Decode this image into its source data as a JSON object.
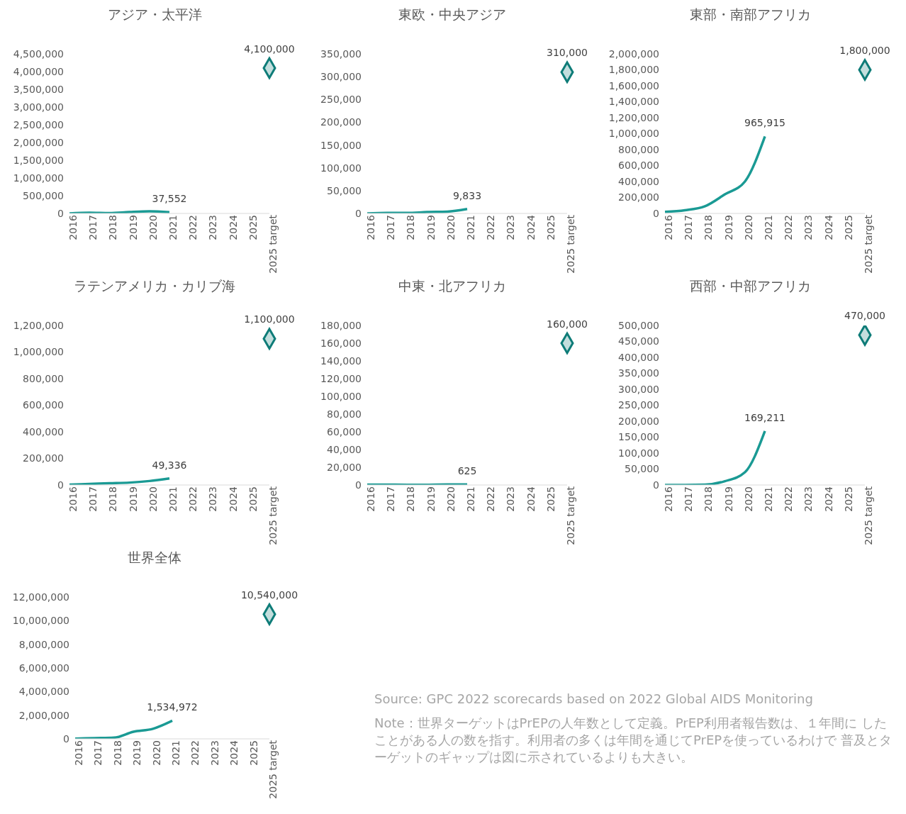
{
  "chart_data": [
    {
      "type": "line",
      "title": "アジア・太平洋",
      "categories": [
        "2016",
        "2017",
        "2018",
        "2019",
        "2020",
        "2021",
        "2022",
        "2023",
        "2024",
        "2025",
        "2025 target"
      ],
      "ylim": [
        0,
        4500000
      ],
      "yticks": [
        {
          "value": 0,
          "label": "0"
        },
        {
          "value": 500000,
          "label": "500,000"
        },
        {
          "value": 1000000,
          "label": "1,000,000"
        },
        {
          "value": 1500000,
          "label": "1,500,000"
        },
        {
          "value": 2000000,
          "label": "2,000,000"
        },
        {
          "value": 2500000,
          "label": "2,500,000"
        },
        {
          "value": 3000000,
          "label": "3,000,000"
        },
        {
          "value": 3500000,
          "label": "3,500,000"
        },
        {
          "value": 4000000,
          "label": "4,000,000"
        },
        {
          "value": 4500000,
          "label": "4,500,000"
        }
      ],
      "series": [
        {
          "type": "line",
          "color": "#1a9a94",
          "marker": "none",
          "values": [
            0,
            20000,
            10000,
            40000,
            60000,
            37552,
            null,
            null,
            null,
            null,
            null
          ],
          "value_labels": [
            null,
            null,
            null,
            null,
            null,
            "37,552",
            null,
            null,
            null,
            null,
            null
          ]
        },
        {
          "type": "scatter",
          "color": "#0e7c78",
          "marker": "diamond",
          "values": [
            null,
            null,
            null,
            null,
            null,
            null,
            null,
            null,
            null,
            null,
            4100000
          ],
          "value_labels": [
            null,
            null,
            null,
            null,
            null,
            null,
            null,
            null,
            null,
            null,
            "4,100,000"
          ]
        }
      ]
    },
    {
      "type": "line",
      "title": "東欧・中央アジア",
      "categories": [
        "2016",
        "2017",
        "2018",
        "2019",
        "2020",
        "2021",
        "2022",
        "2023",
        "2024",
        "2025",
        "2025 target"
      ],
      "ylim": [
        0,
        350000
      ],
      "yticks": [
        {
          "value": 0,
          "label": "0"
        },
        {
          "value": 50000,
          "label": "50,000"
        },
        {
          "value": 100000,
          "label": "100,000"
        },
        {
          "value": 150000,
          "label": "150,000"
        },
        {
          "value": 200000,
          "label": "200,000"
        },
        {
          "value": 250000,
          "label": "250,000"
        },
        {
          "value": 300000,
          "label": "300,000"
        },
        {
          "value": 350000,
          "label": "350,000"
        }
      ],
      "series": [
        {
          "type": "line",
          "color": "#1a9a94",
          "marker": "none",
          "values": [
            0,
            1000,
            1000,
            3000,
            4000,
            9833,
            null,
            null,
            null,
            null,
            null
          ],
          "value_labels": [
            null,
            null,
            null,
            null,
            null,
            "9,833",
            null,
            null,
            null,
            null,
            null
          ]
        },
        {
          "type": "scatter",
          "color": "#0e7c78",
          "marker": "diamond",
          "values": [
            null,
            null,
            null,
            null,
            null,
            null,
            null,
            null,
            null,
            null,
            310000
          ],
          "value_labels": [
            null,
            null,
            null,
            null,
            null,
            null,
            null,
            null,
            null,
            null,
            "310,000"
          ]
        }
      ]
    },
    {
      "type": "line",
      "title": "東部・南部アフリカ",
      "categories": [
        "2016",
        "2017",
        "2018",
        "2019",
        "2020",
        "2021",
        "2022",
        "2023",
        "2024",
        "2025",
        "2025 target"
      ],
      "ylim": [
        0,
        2000000
      ],
      "yticks": [
        {
          "value": 0,
          "label": "0"
        },
        {
          "value": 200000,
          "label": "200,000"
        },
        {
          "value": 400000,
          "label": "400,000"
        },
        {
          "value": 600000,
          "label": "600,000"
        },
        {
          "value": 800000,
          "label": "800,000"
        },
        {
          "value": 1000000,
          "label": "1,000,000"
        },
        {
          "value": 1200000,
          "label": "1,200,000"
        },
        {
          "value": 1400000,
          "label": "1,400,000"
        },
        {
          "value": 1600000,
          "label": "1,600,000"
        },
        {
          "value": 1800000,
          "label": "1,800,000"
        },
        {
          "value": 2000000,
          "label": "2,000,000"
        }
      ],
      "series": [
        {
          "type": "line",
          "color": "#1a9a94",
          "marker": "none",
          "values": [
            20000,
            40000,
            90000,
            240000,
            400000,
            965915,
            null,
            null,
            null,
            null,
            null
          ],
          "value_labels": [
            null,
            null,
            null,
            null,
            null,
            "965,915",
            null,
            null,
            null,
            null,
            null
          ]
        },
        {
          "type": "scatter",
          "color": "#0e7c78",
          "marker": "diamond",
          "values": [
            null,
            null,
            null,
            null,
            null,
            null,
            null,
            null,
            null,
            null,
            1800000
          ],
          "value_labels": [
            null,
            null,
            null,
            null,
            null,
            null,
            null,
            null,
            null,
            null,
            "1,800,000"
          ]
        }
      ]
    },
    {
      "type": "line",
      "title": "ラテンアメリカ・カリブ海",
      "categories": [
        "2016",
        "2017",
        "2018",
        "2019",
        "2020",
        "2021",
        "2022",
        "2023",
        "2024",
        "2025",
        "2025 target"
      ],
      "ylim": [
        0,
        1200000
      ],
      "yticks": [
        {
          "value": 0,
          "label": "0"
        },
        {
          "value": 200000,
          "label": "200,000"
        },
        {
          "value": 400000,
          "label": "400,000"
        },
        {
          "value": 600000,
          "label": "600,000"
        },
        {
          "value": 800000,
          "label": "800,000"
        },
        {
          "value": 1000000,
          "label": "1,000,000"
        },
        {
          "value": 1200000,
          "label": "1,200,000"
        }
      ],
      "series": [
        {
          "type": "line",
          "color": "#1a9a94",
          "marker": "none",
          "values": [
            3000,
            8000,
            13000,
            18000,
            30000,
            49336,
            null,
            null,
            null,
            null,
            null
          ],
          "value_labels": [
            null,
            null,
            null,
            null,
            null,
            "49,336",
            null,
            null,
            null,
            null,
            null
          ]
        },
        {
          "type": "scatter",
          "color": "#0e7c78",
          "marker": "diamond",
          "values": [
            null,
            null,
            null,
            null,
            null,
            null,
            null,
            null,
            null,
            null,
            1100000
          ],
          "value_labels": [
            null,
            null,
            null,
            null,
            null,
            null,
            null,
            null,
            null,
            null,
            "1,100,000"
          ]
        }
      ]
    },
    {
      "type": "line",
      "title": "中東・北アフリカ",
      "categories": [
        "2016",
        "2017",
        "2018",
        "2019",
        "2020",
        "2021",
        "2022",
        "2023",
        "2024",
        "2025",
        "2025 target"
      ],
      "ylim": [
        0,
        180000
      ],
      "yticks": [
        {
          "value": 0,
          "label": "0"
        },
        {
          "value": 20000,
          "label": "20,000"
        },
        {
          "value": 40000,
          "label": "40,000"
        },
        {
          "value": 60000,
          "label": "60,000"
        },
        {
          "value": 80000,
          "label": "80,000"
        },
        {
          "value": 100000,
          "label": "100,000"
        },
        {
          "value": 120000,
          "label": "120,000"
        },
        {
          "value": 140000,
          "label": "140,000"
        },
        {
          "value": 160000,
          "label": "160,000"
        },
        {
          "value": 180000,
          "label": "180,000"
        }
      ],
      "series": [
        {
          "type": "line",
          "color": "#1a9a94",
          "marker": "none",
          "values": [
            500,
            400,
            200,
            300,
            600,
            625,
            null,
            null,
            null,
            null,
            null
          ],
          "value_labels": [
            null,
            null,
            null,
            null,
            null,
            "625",
            null,
            null,
            null,
            null,
            null
          ]
        },
        {
          "type": "scatter",
          "color": "#0e7c78",
          "marker": "diamond",
          "values": [
            null,
            null,
            null,
            null,
            null,
            null,
            null,
            null,
            null,
            null,
            160000
          ],
          "value_labels": [
            null,
            null,
            null,
            null,
            null,
            null,
            null,
            null,
            null,
            null,
            "160,000"
          ]
        }
      ]
    },
    {
      "type": "line",
      "title": "西部・中部アフリカ",
      "categories": [
        "2016",
        "2017",
        "2018",
        "2019",
        "2020",
        "2021",
        "2022",
        "2023",
        "2024",
        "2025",
        "2025 target"
      ],
      "ylim": [
        0,
        500000
      ],
      "yticks": [
        {
          "value": 0,
          "label": "0"
        },
        {
          "value": 50000,
          "label": "50,000"
        },
        {
          "value": 100000,
          "label": "100,000"
        },
        {
          "value": 150000,
          "label": "150,000"
        },
        {
          "value": 200000,
          "label": "200,000"
        },
        {
          "value": 250000,
          "label": "250,000"
        },
        {
          "value": 300000,
          "label": "300,000"
        },
        {
          "value": 350000,
          "label": "350,000"
        },
        {
          "value": 400000,
          "label": "400,000"
        },
        {
          "value": 450000,
          "label": "450,000"
        },
        {
          "value": 500000,
          "label": "500,000"
        }
      ],
      "series": [
        {
          "type": "line",
          "color": "#1a9a94",
          "marker": "none",
          "values": [
            0,
            0,
            1000,
            12000,
            40000,
            169211,
            null,
            null,
            null,
            null,
            null
          ],
          "value_labels": [
            null,
            null,
            null,
            null,
            null,
            "169,211",
            null,
            null,
            null,
            null,
            null
          ]
        },
        {
          "type": "scatter",
          "color": "#0e7c78",
          "marker": "diamond",
          "values": [
            null,
            null,
            null,
            null,
            null,
            null,
            null,
            null,
            null,
            null,
            470000
          ],
          "value_labels": [
            null,
            null,
            null,
            null,
            null,
            null,
            null,
            null,
            null,
            null,
            "470,000"
          ]
        }
      ]
    },
    {
      "type": "line",
      "title": "世界全体",
      "categories": [
        "2016",
        "2017",
        "2018",
        "2019",
        "2020",
        "2021",
        "2022",
        "2023",
        "2024",
        "2025",
        "2025 target"
      ],
      "ylim": [
        0,
        12000000
      ],
      "yticks": [
        {
          "value": 0,
          "label": "0"
        },
        {
          "value": 2000000,
          "label": "2,000,000"
        },
        {
          "value": 4000000,
          "label": "4,000,000"
        },
        {
          "value": 6000000,
          "label": "6,000,000"
        },
        {
          "value": 8000000,
          "label": "8,000,000"
        },
        {
          "value": 10000000,
          "label": "10,000,000"
        },
        {
          "value": 12000000,
          "label": "12,000,000"
        }
      ],
      "annotations": [
        "Source: GPC 2022 scorecards based on 2022 Global AIDS Monitoring",
        "Note：世界ターゲットはPrEPの人年数として定義。PrEP利用者報告数は、１年間に したことがある人の数を指す。利用者の多くは年間を通じてPrEPを使っているわけで 普及とターゲットのギャップは図に示されているよりも大きい。"
      ],
      "series": [
        {
          "type": "line",
          "color": "#1a9a94",
          "marker": "none",
          "values": [
            20000,
            60000,
            100000,
            600000,
            850000,
            1534972,
            null,
            null,
            null,
            null,
            null
          ],
          "value_labels": [
            null,
            null,
            null,
            null,
            null,
            "1,534,972",
            null,
            null,
            null,
            null,
            null
          ]
        },
        {
          "type": "scatter",
          "color": "#0e7c78",
          "marker": "diamond",
          "values": [
            null,
            null,
            null,
            null,
            null,
            null,
            null,
            null,
            null,
            null,
            10540000
          ],
          "value_labels": [
            null,
            null,
            null,
            null,
            null,
            null,
            null,
            null,
            null,
            null,
            "10,540,000"
          ]
        }
      ]
    }
  ]
}
